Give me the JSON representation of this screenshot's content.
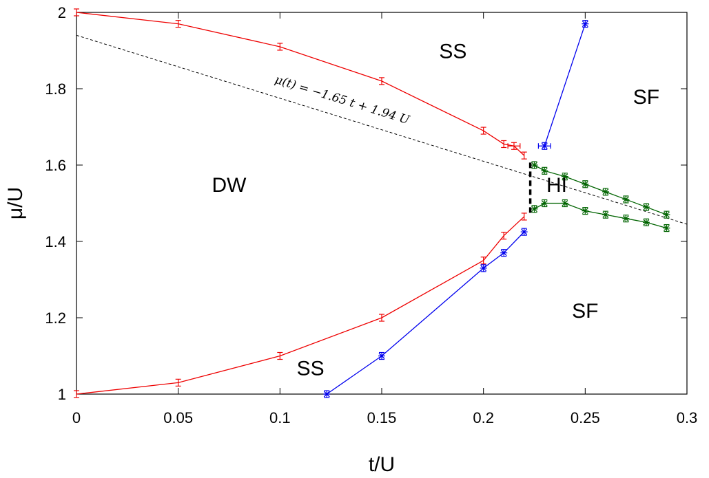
{
  "chart_data": {
    "type": "line",
    "title": "",
    "xlabel": "t/U",
    "ylabel": "μ/U",
    "xlim": [
      0,
      0.3
    ],
    "ylim": [
      1,
      2
    ],
    "xticks": [
      "0",
      "0.05",
      "0.1",
      "0.15",
      "0.2",
      "0.25",
      "0.3"
    ],
    "yticks": [
      "1",
      "1.2",
      "1.4",
      "1.6",
      "1.8",
      "2"
    ],
    "grid": false,
    "legend": "none",
    "series": [
      {
        "color": "#ee0000",
        "marker": "errorbar",
        "points": [
          [
            0,
            2.0
          ],
          [
            0.05,
            1.97
          ],
          [
            0.1,
            1.91
          ],
          [
            0.15,
            1.82
          ],
          [
            0.2,
            1.69
          ],
          [
            0.21,
            1.655
          ],
          [
            0.215,
            1.65
          ],
          [
            0.22,
            1.625
          ]
        ]
      },
      {
        "color": "#ee0000",
        "marker": "errorbar",
        "points": [
          [
            0,
            1.0
          ],
          [
            0.05,
            1.03
          ],
          [
            0.1,
            1.1
          ],
          [
            0.15,
            1.2
          ],
          [
            0.2,
            1.35
          ],
          [
            0.21,
            1.415
          ],
          [
            0.22,
            1.465
          ]
        ]
      },
      {
        "color": "#0000ee",
        "marker": "star",
        "points": [
          [
            0.23,
            1.65
          ],
          [
            0.25,
            1.97
          ]
        ]
      },
      {
        "color": "#0000ee",
        "marker": "star",
        "points": [
          [
            0.123,
            1.0
          ],
          [
            0.15,
            1.1
          ],
          [
            0.2,
            1.33
          ],
          [
            0.21,
            1.37
          ],
          [
            0.22,
            1.425
          ]
        ]
      },
      {
        "color": "#006400",
        "marker": "star",
        "points": [
          [
            0.225,
            1.6
          ],
          [
            0.23,
            1.585
          ],
          [
            0.24,
            1.57
          ],
          [
            0.25,
            1.55
          ],
          [
            0.26,
            1.53
          ],
          [
            0.27,
            1.51
          ],
          [
            0.28,
            1.49
          ],
          [
            0.29,
            1.47
          ]
        ]
      },
      {
        "color": "#006400",
        "marker": "star",
        "points": [
          [
            0.225,
            1.485
          ],
          [
            0.23,
            1.5
          ],
          [
            0.24,
            1.5
          ],
          [
            0.25,
            1.48
          ],
          [
            0.26,
            1.47
          ],
          [
            0.27,
            1.46
          ],
          [
            0.28,
            1.45
          ],
          [
            0.29,
            1.435
          ]
        ]
      }
    ],
    "reference_line": {
      "slope": -1.65,
      "intercept": 1.94,
      "style": "dashed"
    },
    "boundary_segment": {
      "x": 0.223,
      "y_from": 1.475,
      "y_to": 1.61,
      "style": "thick-dashed"
    },
    "annotation": "μ(t) = −1.65 t + 1.94 U",
    "regions": [
      {
        "label": "SS",
        "x": 0.185,
        "y": 1.88
      },
      {
        "label": "SF",
        "x": 0.28,
        "y": 1.76
      },
      {
        "label": "DW",
        "x": 0.075,
        "y": 1.53
      },
      {
        "label": "HI",
        "x": 0.236,
        "y": 1.53
      },
      {
        "label": "SF",
        "x": 0.25,
        "y": 1.2
      },
      {
        "label": "SS",
        "x": 0.115,
        "y": 1.05
      }
    ]
  }
}
